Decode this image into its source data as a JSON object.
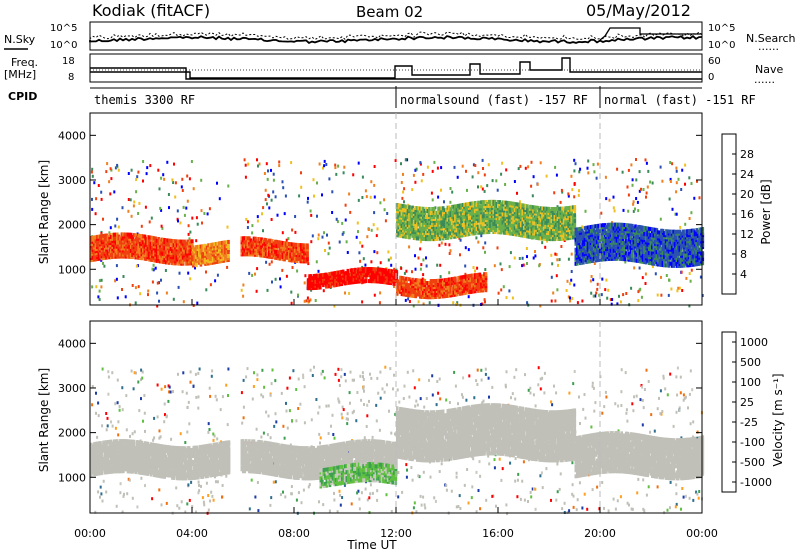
{
  "header": {
    "station": "Kodiak (fitACF)",
    "beam": "Beam 02",
    "date": "05/May/2012"
  },
  "left_labels": {
    "nsky": "N.Sky",
    "freq": "Freq.",
    "freq_unit": "[MHz]",
    "cpid": "CPID"
  },
  "right_labels": {
    "nsearch": "N.Search",
    "nave": "Nave",
    "dots": "......"
  },
  "noise_panel": {
    "left_ticks": [
      "10^5",
      "10^0"
    ],
    "right_ticks": [
      "10^5",
      "10^0"
    ]
  },
  "freq_panel": {
    "left_ticks": [
      "18",
      "8"
    ],
    "right_ticks": [
      "60",
      "0"
    ]
  },
  "cpid_segments": [
    {
      "label": "themis 3300 RF",
      "start_hour": 0
    },
    {
      "label": "normalsound (fast) -157 RF",
      "start_hour": 12
    },
    {
      "label": "normal (fast) -151 RF",
      "start_hour": 20
    }
  ],
  "colors": {
    "power_scale": [
      "#0000ff",
      "#2a50b4",
      "#3a8a5a",
      "#6ab04a",
      "#f0c020",
      "#f08020",
      "#f04010",
      "#ff0000"
    ],
    "velocity_scale": [
      "#1c3ca8",
      "#2e6e8e",
      "#3ca050",
      "#60c040",
      "#c8c8c0",
      "#ffa020",
      "#f07010",
      "#ff0000"
    ],
    "ground_scatter": "#c0c0b8"
  },
  "chart_data": [
    {
      "type": "heatmap",
      "name": "power",
      "ylabel": "Slant Range [km]",
      "xlabel": "Time UT",
      "x_ticks": [
        "00:00",
        "04:00",
        "08:00",
        "12:00",
        "16:00",
        "20:00",
        "00:00"
      ],
      "y_ticks": [
        "1000",
        "2000",
        "3000",
        "4000"
      ],
      "ylim": [
        200,
        4500
      ],
      "xlim_hours": [
        0,
        24
      ],
      "colorbar": {
        "label": "Power [dB]",
        "ticks": [
          "4",
          "8",
          "12",
          "16",
          "20",
          "24",
          "28"
        ]
      },
      "features": [
        {
          "t0": 0.0,
          "t1": 4.0,
          "r0": 1250,
          "r1": 1750,
          "level": 6
        },
        {
          "t0": 4.0,
          "t1": 5.4,
          "r0": 1200,
          "r1": 1650,
          "level": 5
        },
        {
          "t0": 5.9,
          "t1": 8.5,
          "r0": 1300,
          "r1": 1700,
          "level": 6
        },
        {
          "t0": 8.5,
          "t1": 12.0,
          "r0": 700,
          "r1": 1000,
          "level": 7
        },
        {
          "t0": 12.0,
          "t1": 15.5,
          "r0": 500,
          "r1": 900,
          "level": 6
        },
        {
          "t0": 12.0,
          "t1": 19.0,
          "r0": 1800,
          "r1": 2500,
          "level": 3
        },
        {
          "t0": 19.0,
          "t1": 24.0,
          "r0": 1200,
          "r1": 2000,
          "level": 1
        }
      ]
    },
    {
      "type": "heatmap",
      "name": "velocity",
      "ylabel": "Slant Range [km]",
      "xlabel": "Time UT",
      "x_ticks": [
        "00:00",
        "04:00",
        "08:00",
        "12:00",
        "16:00",
        "20:00",
        "00:00"
      ],
      "y_ticks": [
        "1000",
        "2000",
        "3000",
        "4000"
      ],
      "ylim": [
        200,
        4500
      ],
      "xlim_hours": [
        0,
        24
      ],
      "colorbar": {
        "label": "Velocity [m s⁻¹]",
        "ticks": [
          "1000",
          "500",
          "100",
          "25",
          "-25",
          "-100",
          "-500",
          "-1000"
        ]
      },
      "features": [
        {
          "t0": 0.0,
          "t1": 5.4,
          "r0": 1100,
          "r1": 1800,
          "level": 4
        },
        {
          "t0": 5.9,
          "t1": 12.0,
          "r0": 1100,
          "r1": 1800,
          "level": 4
        },
        {
          "t0": 9.0,
          "t1": 12.0,
          "r0": 900,
          "r1": 1300,
          "level": 3
        },
        {
          "t0": 12.0,
          "t1": 19.0,
          "r0": 1500,
          "r1": 2600,
          "level": 4
        },
        {
          "t0": 19.0,
          "t1": 24.0,
          "r0": 1100,
          "r1": 2000,
          "level": 4
        }
      ]
    }
  ]
}
